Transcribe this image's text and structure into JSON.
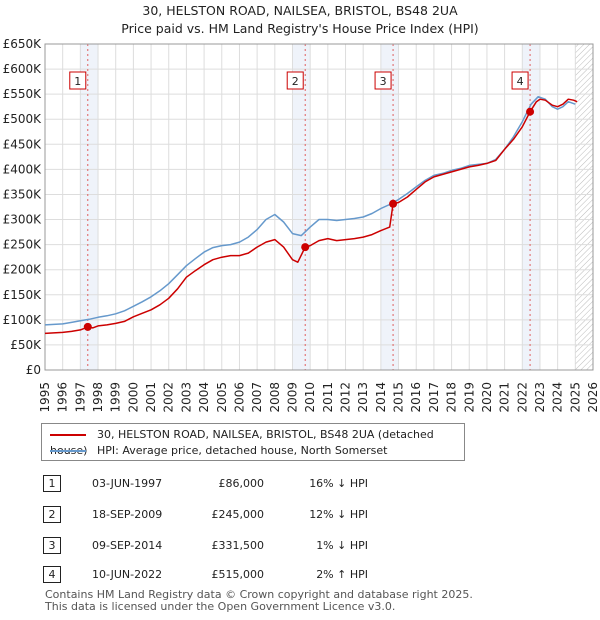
{
  "header": {
    "title": "30, HELSTON ROAD, NAILSEA, BRISTOL, BS48 2UA",
    "subtitle": "Price paid vs. HM Land Registry's House Price Index (HPI)"
  },
  "chart_data": {
    "type": "line",
    "title": "30, HELSTON ROAD, NAILSEA, BRISTOL, BS48 2UA",
    "subtitle": "Price paid vs. HM Land Registry's House Price Index (HPI)",
    "xlim": [
      1995,
      2026
    ],
    "ylim": [
      0,
      650000
    ],
    "y_ticks": [
      0,
      50000,
      100000,
      150000,
      200000,
      250000,
      300000,
      350000,
      400000,
      450000,
      500000,
      550000,
      600000,
      650000
    ],
    "y_tick_labels": [
      "£0",
      "£50K",
      "£100K",
      "£150K",
      "£200K",
      "£250K",
      "£300K",
      "£350K",
      "£400K",
      "£450K",
      "£500K",
      "£550K",
      "£600K",
      "£650K"
    ],
    "x_ticks": [
      1995,
      1996,
      1997,
      1998,
      1999,
      2000,
      2001,
      2002,
      2003,
      2004,
      2005,
      2006,
      2007,
      2008,
      2009,
      2010,
      2011,
      2012,
      2013,
      2014,
      2015,
      2016,
      2017,
      2018,
      2019,
      2020,
      2021,
      2022,
      2023,
      2024,
      2025,
      2026
    ],
    "x_tick_labels": [
      "1995",
      "1996",
      "1997",
      "1998",
      "1999",
      "2000",
      "2001",
      "2002",
      "2003",
      "2004",
      "2005",
      "2006",
      "2007",
      "2008",
      "2009",
      "2010",
      "2011",
      "2012",
      "2013",
      "2014",
      "2015",
      "2016",
      "2017",
      "2018",
      "2019",
      "2020",
      "2021",
      "2022",
      "2023",
      "2024",
      "2025",
      "2026"
    ],
    "grid": true,
    "shaded_years": [
      1997,
      2009,
      2014,
      2022
    ],
    "series": [
      {
        "name": "30, HELSTON ROAD, NAILSEA, BRISTOL, BS48 2UA (detached house)",
        "color": "#cc0000",
        "points": [
          [
            1995.0,
            73000
          ],
          [
            1995.5,
            74000
          ],
          [
            1996.0,
            75000
          ],
          [
            1996.5,
            77000
          ],
          [
            1997.0,
            80000
          ],
          [
            1997.42,
            86000
          ],
          [
            1997.7,
            84000
          ],
          [
            1998.0,
            88000
          ],
          [
            1998.5,
            90000
          ],
          [
            1999.0,
            93000
          ],
          [
            1999.5,
            97000
          ],
          [
            2000.0,
            106000
          ],
          [
            2000.5,
            113000
          ],
          [
            2001.0,
            120000
          ],
          [
            2001.5,
            130000
          ],
          [
            2002.0,
            143000
          ],
          [
            2002.5,
            162000
          ],
          [
            2003.0,
            185000
          ],
          [
            2003.5,
            198000
          ],
          [
            2004.0,
            210000
          ],
          [
            2004.5,
            220000
          ],
          [
            2005.0,
            225000
          ],
          [
            2005.5,
            228000
          ],
          [
            2006.0,
            228000
          ],
          [
            2006.5,
            233000
          ],
          [
            2007.0,
            245000
          ],
          [
            2007.5,
            255000
          ],
          [
            2008.0,
            260000
          ],
          [
            2008.5,
            245000
          ],
          [
            2009.0,
            220000
          ],
          [
            2009.3,
            215000
          ],
          [
            2009.72,
            245000
          ],
          [
            2010.0,
            248000
          ],
          [
            2010.5,
            258000
          ],
          [
            2011.0,
            262000
          ],
          [
            2011.5,
            258000
          ],
          [
            2012.0,
            260000
          ],
          [
            2012.5,
            262000
          ],
          [
            2013.0,
            265000
          ],
          [
            2013.5,
            270000
          ],
          [
            2014.0,
            278000
          ],
          [
            2014.5,
            285000
          ],
          [
            2014.69,
            331500
          ],
          [
            2015.0,
            334000
          ],
          [
            2015.5,
            345000
          ],
          [
            2016.0,
            360000
          ],
          [
            2016.5,
            375000
          ],
          [
            2017.0,
            385000
          ],
          [
            2017.5,
            390000
          ],
          [
            2018.0,
            395000
          ],
          [
            2018.5,
            400000
          ],
          [
            2019.0,
            405000
          ],
          [
            2019.5,
            408000
          ],
          [
            2020.0,
            412000
          ],
          [
            2020.5,
            418000
          ],
          [
            2021.0,
            440000
          ],
          [
            2021.5,
            460000
          ],
          [
            2022.0,
            485000
          ],
          [
            2022.44,
            515000
          ],
          [
            2022.8,
            535000
          ],
          [
            2023.0,
            540000
          ],
          [
            2023.3,
            538000
          ],
          [
            2023.7,
            528000
          ],
          [
            2024.0,
            525000
          ],
          [
            2024.3,
            530000
          ],
          [
            2024.6,
            540000
          ],
          [
            2024.9,
            538000
          ],
          [
            2025.1,
            535000
          ]
        ]
      },
      {
        "name": "HPI: Average price, detached house, North Somerset",
        "color": "#6699cc",
        "points": [
          [
            1995.0,
            90000
          ],
          [
            1995.5,
            91000
          ],
          [
            1996.0,
            92000
          ],
          [
            1996.5,
            95000
          ],
          [
            1997.0,
            98000
          ],
          [
            1997.5,
            101000
          ],
          [
            1998.0,
            105000
          ],
          [
            1998.5,
            108000
          ],
          [
            1999.0,
            112000
          ],
          [
            1999.5,
            118000
          ],
          [
            2000.0,
            127000
          ],
          [
            2000.5,
            136000
          ],
          [
            2001.0,
            146000
          ],
          [
            2001.5,
            158000
          ],
          [
            2002.0,
            172000
          ],
          [
            2002.5,
            190000
          ],
          [
            2003.0,
            208000
          ],
          [
            2003.5,
            222000
          ],
          [
            2004.0,
            235000
          ],
          [
            2004.5,
            244000
          ],
          [
            2005.0,
            248000
          ],
          [
            2005.5,
            250000
          ],
          [
            2006.0,
            255000
          ],
          [
            2006.5,
            265000
          ],
          [
            2007.0,
            280000
          ],
          [
            2007.5,
            300000
          ],
          [
            2008.0,
            310000
          ],
          [
            2008.5,
            295000
          ],
          [
            2009.0,
            272000
          ],
          [
            2009.5,
            268000
          ],
          [
            2010.0,
            285000
          ],
          [
            2010.5,
            300000
          ],
          [
            2011.0,
            300000
          ],
          [
            2011.5,
            298000
          ],
          [
            2012.0,
            300000
          ],
          [
            2012.5,
            302000
          ],
          [
            2013.0,
            305000
          ],
          [
            2013.5,
            312000
          ],
          [
            2014.0,
            322000
          ],
          [
            2014.5,
            330000
          ],
          [
            2015.0,
            340000
          ],
          [
            2015.5,
            352000
          ],
          [
            2016.0,
            365000
          ],
          [
            2016.5,
            378000
          ],
          [
            2017.0,
            388000
          ],
          [
            2017.5,
            392000
          ],
          [
            2018.0,
            398000
          ],
          [
            2018.5,
            402000
          ],
          [
            2019.0,
            408000
          ],
          [
            2019.5,
            410000
          ],
          [
            2020.0,
            412000
          ],
          [
            2020.5,
            420000
          ],
          [
            2021.0,
            440000
          ],
          [
            2021.5,
            465000
          ],
          [
            2022.0,
            495000
          ],
          [
            2022.5,
            530000
          ],
          [
            2022.9,
            545000
          ],
          [
            2023.3,
            540000
          ],
          [
            2023.7,
            525000
          ],
          [
            2024.0,
            520000
          ],
          [
            2024.3,
            525000
          ],
          [
            2024.6,
            535000
          ],
          [
            2025.0,
            530000
          ]
        ]
      }
    ],
    "sales": [
      {
        "label": "1",
        "year": 1997.42,
        "price": 86000
      },
      {
        "label": "2",
        "year": 2009.72,
        "price": 245000
      },
      {
        "label": "3",
        "year": 2014.69,
        "price": 331500
      },
      {
        "label": "4",
        "year": 2022.44,
        "price": 515000
      }
    ]
  },
  "legend": {
    "items": [
      {
        "label": "30, HELSTON ROAD, NAILSEA, BRISTOL, BS48 2UA (detached house)",
        "color": "#cc0000"
      },
      {
        "label": "HPI: Average price, detached house, North Somerset",
        "color": "#6699cc"
      }
    ]
  },
  "transactions": [
    {
      "num": "1",
      "date": "03-JUN-1997",
      "price": "£86,000",
      "hpi": "16% ↓ HPI"
    },
    {
      "num": "2",
      "date": "18-SEP-2009",
      "price": "£245,000",
      "hpi": "12% ↓ HPI"
    },
    {
      "num": "3",
      "date": "09-SEP-2014",
      "price": "£331,500",
      "hpi": "1% ↓ HPI"
    },
    {
      "num": "4",
      "date": "10-JUN-2022",
      "price": "£515,000",
      "hpi": "2% ↑ HPI"
    }
  ],
  "footer": {
    "line1": "Contains HM Land Registry data © Crown copyright and database right 2025.",
    "line2": "This data is licensed under the Open Government Licence v3.0."
  }
}
